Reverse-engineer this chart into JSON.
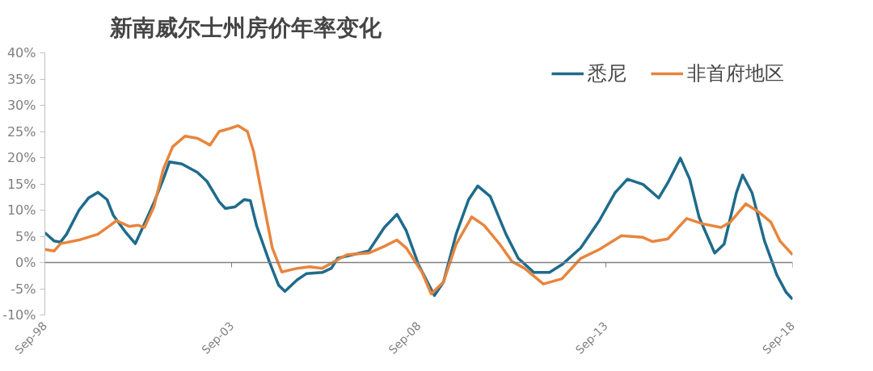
{
  "chart_data": {
    "type": "line",
    "title": "新南威尔士州房价年率变化",
    "xlim": [
      "1998-09",
      "2018-09"
    ],
    "xticks": [
      {
        "value": "1998-09",
        "label": "Sep-98"
      },
      {
        "value": "2003-09",
        "label": "Sep-03"
      },
      {
        "value": "2008-09",
        "label": "Sep-08"
      },
      {
        "value": "2013-09",
        "label": "Sep-13"
      },
      {
        "value": "2018-09",
        "label": "Sep-18"
      }
    ],
    "ylim": [
      -10,
      40
    ],
    "yticks": [
      {
        "value": -10,
        "label": "-10%"
      },
      {
        "value": -5,
        "label": "-5%"
      },
      {
        "value": 0,
        "label": "0%"
      },
      {
        "value": 5,
        "label": "5%"
      },
      {
        "value": 10,
        "label": "10%"
      },
      {
        "value": 15,
        "label": "15%"
      },
      {
        "value": 20,
        "label": "20%"
      },
      {
        "value": 25,
        "label": "25%"
      },
      {
        "value": 30,
        "label": "30%"
      },
      {
        "value": 35,
        "label": "35%"
      },
      {
        "value": 40,
        "label": "40%"
      }
    ],
    "grid": false,
    "ref_lines": [
      {
        "axis": "y",
        "value": 0,
        "color": "#7f7f7f"
      }
    ],
    "legend": "top right",
    "marker": "none",
    "line_style": "solid",
    "series": [
      {
        "name": "悉尼",
        "color": "#1f6b8c",
        "x": [
          "1998-09",
          "1998-12",
          "1999-02",
          "1999-04",
          "1999-08",
          "1999-11",
          "2000-02",
          "2000-05",
          "2000-07",
          "2000-11",
          "2001-02",
          "2001-04",
          "2001-08",
          "2001-11",
          "2002-01",
          "2002-05",
          "2002-10",
          "2003-01",
          "2003-05",
          "2003-07",
          "2003-10",
          "2004-01",
          "2004-03",
          "2004-05",
          "2004-09",
          "2004-12",
          "2005-02",
          "2005-06",
          "2005-09",
          "2006-02",
          "2006-05",
          "2006-07",
          "2007-02",
          "2007-05",
          "2007-10",
          "2008-02",
          "2008-05",
          "2008-09",
          "2009-02",
          "2009-05",
          "2009-09",
          "2010-01",
          "2010-04",
          "2010-08",
          "2011-01",
          "2011-05",
          "2011-10",
          "2012-03",
          "2012-07",
          "2013-01",
          "2013-07",
          "2013-12",
          "2014-04",
          "2014-09",
          "2015-02",
          "2015-05",
          "2015-09",
          "2015-12",
          "2016-03",
          "2016-08",
          "2016-11",
          "2017-03",
          "2017-05",
          "2017-08",
          "2017-12",
          "2018-04",
          "2018-07",
          "2018-09"
        ],
        "values": [
          5.7,
          4.1,
          3.9,
          5.4,
          10,
          12.3,
          13.4,
          12,
          9,
          5.7,
          3.6,
          6.1,
          11.4,
          15.9,
          19.2,
          18.8,
          17.2,
          15.5,
          11.6,
          10.3,
          10.6,
          12,
          11.8,
          7,
          0.2,
          -4.3,
          -5.5,
          -3.3,
          -2.1,
          -1.9,
          -1.1,
          0.8,
          1.8,
          2.2,
          6.7,
          9.2,
          6.1,
          -0.5,
          -6.3,
          -3.7,
          5.4,
          12,
          14.6,
          12.6,
          5.4,
          0.8,
          -1.9,
          -1.9,
          -0.4,
          2.8,
          8,
          13.3,
          15.9,
          14.9,
          12.3,
          15.2,
          19.9,
          15.9,
          8.7,
          1.8,
          3.5,
          13.3,
          16.7,
          13.3,
          4.1,
          -2.4,
          -5.7,
          -7
        ]
      },
      {
        "name": "非首府地区",
        "color": "#e8853d",
        "x": [
          "1998-09",
          "1998-12",
          "1999-02",
          "1999-08",
          "2000-02",
          "2000-06",
          "2000-08",
          "2000-12",
          "2001-03",
          "2001-05",
          "2001-08",
          "2001-11",
          "2002-02",
          "2002-06",
          "2002-10",
          "2003-02",
          "2003-05",
          "2003-08",
          "2003-11",
          "2004-02",
          "2004-04",
          "2004-07",
          "2004-10",
          "2005-01",
          "2005-06",
          "2005-10",
          "2006-02",
          "2006-06",
          "2006-10",
          "2007-05",
          "2007-10",
          "2008-02",
          "2008-05",
          "2008-10",
          "2009-01",
          "2009-05",
          "2009-09",
          "2010-02",
          "2010-06",
          "2010-11",
          "2011-03",
          "2011-07",
          "2012-01",
          "2012-07",
          "2013-01",
          "2013-07",
          "2014-02",
          "2014-09",
          "2014-12",
          "2015-05",
          "2015-11",
          "2016-04",
          "2016-10",
          "2017-01",
          "2017-06",
          "2017-10",
          "2018-02",
          "2018-05",
          "2018-09"
        ],
        "values": [
          2.5,
          2.2,
          3.6,
          4.3,
          5.4,
          7.1,
          8,
          6.9,
          7.1,
          6.7,
          10.6,
          17.8,
          22.1,
          24.1,
          23.7,
          22.4,
          25,
          25.5,
          26.1,
          25,
          21.2,
          12,
          2.8,
          -1.8,
          -1.1,
          -0.8,
          -1.1,
          0.2,
          1.5,
          1.8,
          3.1,
          4.3,
          2.8,
          -1.8,
          -6,
          -3.7,
          3.5,
          8.7,
          7.1,
          3.5,
          0.2,
          -1.1,
          -4.1,
          -3.1,
          0.8,
          2.5,
          5.1,
          4.8,
          4,
          4.5,
          8.4,
          7.4,
          6.7,
          7.7,
          11.2,
          9.7,
          7.7,
          4.1,
          1.5
        ]
      }
    ]
  }
}
